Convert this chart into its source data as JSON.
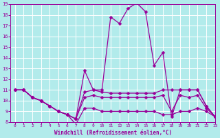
{
  "xlabel": "Windchill (Refroidissement éolien,°C)",
  "bg_color": "#b2ebeb",
  "line_color": "#990099",
  "grid_color": "#ffffff",
  "x_data": [
    0,
    1,
    2,
    3,
    4,
    5,
    6,
    7,
    8,
    9,
    10,
    11,
    12,
    13,
    14,
    15,
    16,
    17,
    18,
    19,
    20,
    21,
    22,
    23
  ],
  "s1": [
    11,
    11,
    10.3,
    10.0,
    9.5,
    9.0,
    8.7,
    8.3,
    10.8,
    11.0,
    10.8,
    10.7,
    10.7,
    10.7,
    10.7,
    10.7,
    10.7,
    11.0,
    11.0,
    11.0,
    11.0,
    11.0,
    9.5,
    8.5
  ],
  "s2": [
    11,
    11,
    10.3,
    10.0,
    9.5,
    9.0,
    8.7,
    8.3,
    12.8,
    11.0,
    11.0,
    17.8,
    17.2,
    18.6,
    19.1,
    18.3,
    13.3,
    14.5,
    8.5,
    11.0,
    11.0,
    11.0,
    9.5,
    8.5
  ],
  "s3": [
    11,
    11,
    10.3,
    10.0,
    9.5,
    9.0,
    8.7,
    8.3,
    10.3,
    10.5,
    10.3,
    10.3,
    10.3,
    10.3,
    10.3,
    10.3,
    10.3,
    10.5,
    9.0,
    10.5,
    10.3,
    10.5,
    9.3,
    8.5
  ],
  "s4": [
    11,
    11,
    10.3,
    10.0,
    9.5,
    9.0,
    8.7,
    7.8,
    9.3,
    9.3,
    9.0,
    9.0,
    9.0,
    9.0,
    9.0,
    9.0,
    9.0,
    8.7,
    8.7,
    9.0,
    9.0,
    9.3,
    9.0,
    8.5
  ],
  "ylim": [
    8,
    19
  ],
  "xlim": [
    -0.5,
    23
  ],
  "yticks": [
    8,
    9,
    10,
    11,
    12,
    13,
    14,
    15,
    16,
    17,
    18,
    19
  ],
  "xticks": [
    0,
    1,
    2,
    3,
    4,
    5,
    6,
    7,
    8,
    9,
    10,
    11,
    12,
    13,
    14,
    15,
    16,
    17,
    18,
    19,
    20,
    21,
    22,
    23
  ],
  "linewidth": 0.9,
  "markersize": 2.5
}
